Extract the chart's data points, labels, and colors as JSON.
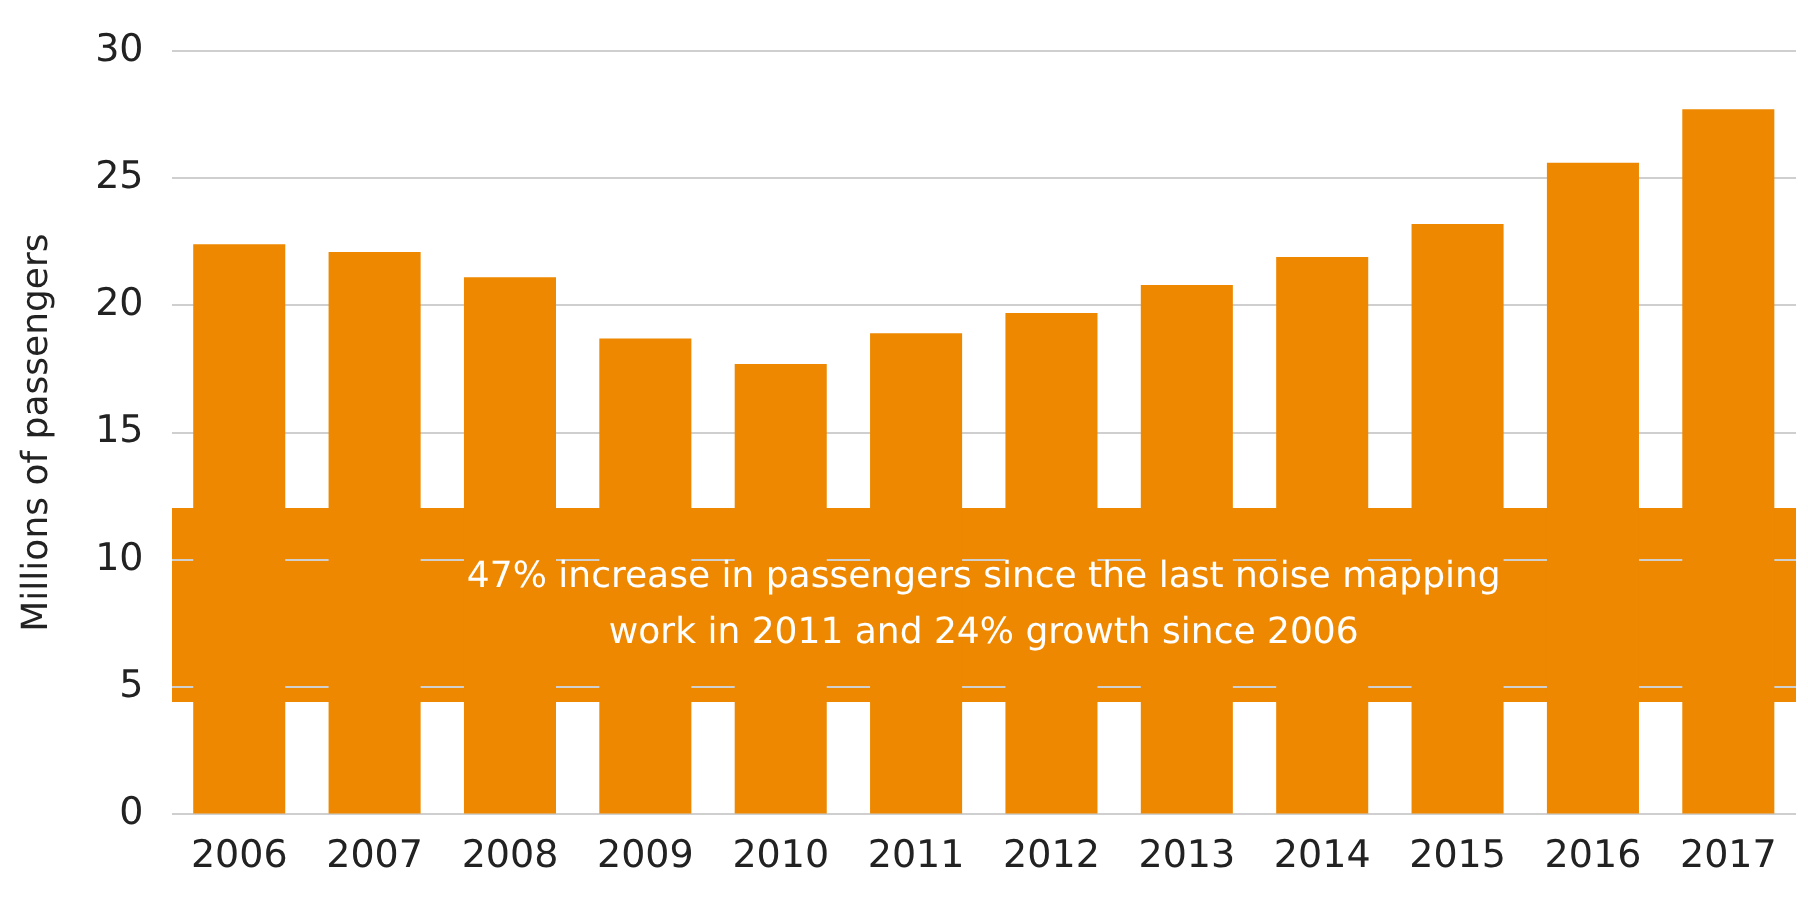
{
  "chart_data": {
    "type": "bar",
    "ylabel": "Millions of passengers",
    "categories": [
      "2006",
      "2007",
      "2008",
      "2009",
      "2010",
      "2011",
      "2012",
      "2013",
      "2014",
      "2015",
      "2016",
      "2017"
    ],
    "values": [
      22.4,
      22.1,
      21.1,
      18.7,
      17.7,
      18.9,
      19.7,
      20.8,
      21.9,
      23.2,
      25.6,
      27.7
    ],
    "color": "#ee8800",
    "ylim": [
      0,
      30
    ],
    "yticks": [
      0,
      5,
      10,
      15,
      20,
      25,
      30
    ],
    "grid": "y",
    "annotations": [
      "47% increase in passengers since the last noise mapping work in 2011 and 24% growth since 2006"
    ]
  }
}
